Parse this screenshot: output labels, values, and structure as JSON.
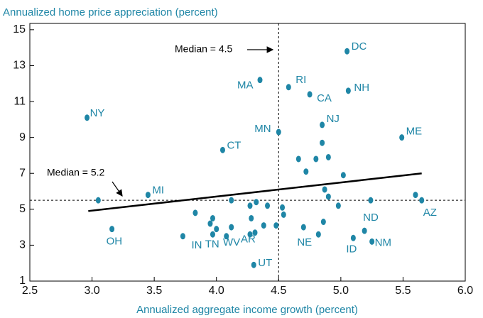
{
  "chart_data": {
    "type": "scatter",
    "title": "Annualized home price appreciation (percent)",
    "x_label": "Annualized aggregate income growth (percent)",
    "color": "#1f86a6",
    "xlim": [
      2.5,
      6.0
    ],
    "ylim": [
      1,
      15.35
    ],
    "xticks": [
      {
        "value": 2.5,
        "label": "2.5"
      },
      {
        "value": 3,
        "label": "3.0"
      },
      {
        "value": 3.5,
        "label": "3.5"
      },
      {
        "value": 4,
        "label": "4.0"
      },
      {
        "value": 4.5,
        "label": "4.5"
      },
      {
        "value": 5,
        "label": "5.0"
      },
      {
        "value": 5.5,
        "label": "5.5"
      },
      {
        "value": 6,
        "label": "6.0"
      }
    ],
    "yticks": [
      1,
      3,
      5,
      7,
      9,
      11,
      13,
      15
    ],
    "x": [
      2.96,
      3.16,
      3.05,
      3.45,
      4.05,
      4.35,
      4.58,
      4.75,
      5.05,
      5.06,
      4.5,
      4.85,
      5.49,
      5.65,
      5.6,
      5.19,
      5.25,
      5.1,
      4.82,
      4.3,
      4.31,
      4.27,
      4.08,
      3.97,
      3.73,
      3.83,
      3.95,
      3.97,
      4.0,
      4.12,
      4.12,
      4.27,
      4.28,
      4.32,
      4.38,
      4.41,
      4.48,
      4.53,
      4.54,
      4.7,
      4.86,
      4.72,
      4.8,
      4.66,
      4.9,
      4.85,
      5.02,
      4.87,
      4.9,
      4.98,
      5.24
    ],
    "values": [
      10.1,
      3.9,
      5.5,
      5.8,
      8.3,
      12.2,
      11.8,
      11.4,
      13.8,
      11.6,
      9.3,
      9.7,
      9.0,
      5.5,
      5.8,
      3.8,
      3.2,
      3.4,
      3.6,
      1.9,
      3.7,
      3.6,
      3.5,
      3.6,
      3.5,
      4.8,
      4.2,
      4.5,
      3.9,
      5.5,
      4.0,
      5.2,
      4.5,
      5.4,
      4.1,
      5.2,
      4.1,
      5.1,
      4.7,
      4.0,
      4.3,
      7.1,
      7.8,
      7.8,
      7.9,
      8.7,
      6.9,
      6.1,
      5.7,
      5.2,
      5.5
    ],
    "labels": [
      "NY",
      "OH",
      null,
      "MI",
      "CT",
      "MA",
      "RI",
      "CA",
      "DC",
      "NH",
      "MN",
      "NJ",
      "ME",
      "AZ",
      null,
      "ND",
      "NM",
      "ID",
      "NE",
      "UT",
      "AR",
      "WV",
      "TN",
      "IN",
      null,
      null,
      null,
      null,
      null,
      null,
      null,
      null,
      null,
      null,
      null,
      null,
      null,
      null,
      null,
      null,
      null,
      null,
      null,
      null,
      null,
      null,
      null,
      null,
      null,
      null,
      null
    ],
    "reference_lines": {
      "x": 4.5,
      "y": 5.5
    },
    "trend_line": {
      "x": [
        2.97,
        5.65
      ],
      "y": [
        4.9,
        7.0
      ]
    },
    "annotations": [
      "Median = 4.5",
      "Median = 5.2"
    ]
  }
}
